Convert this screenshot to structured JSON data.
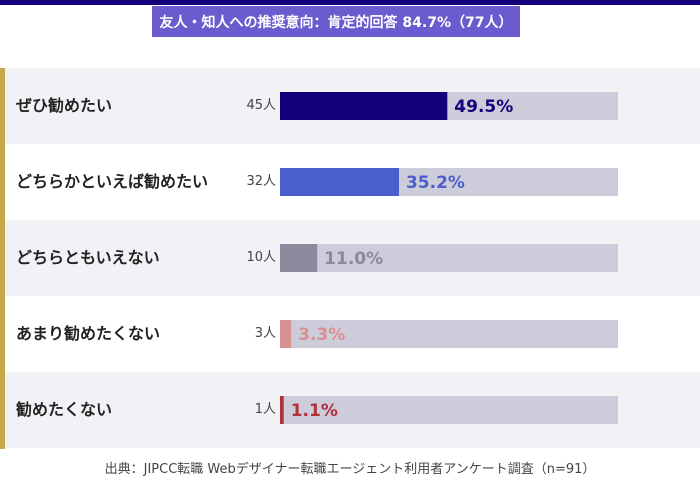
{
  "chart_data": {
    "type": "bar",
    "orientation": "horizontal",
    "title": "友人・知人への推奨意向：肯定的回答 84.7%（77人）",
    "categories": [
      "ぜひ勧めたい",
      "どちらかといえば勧めたい",
      "どちらともいえない",
      "あまり勧めたくない",
      "勧めたくない"
    ],
    "counts": [
      "45人",
      "32人",
      "10人",
      "3人",
      "1人"
    ],
    "values": [
      49.5,
      35.2,
      11.0,
      3.3,
      1.1
    ],
    "value_labels": [
      "49.5%",
      "35.2%",
      "11.0%",
      "3.3%",
      "1.1%"
    ],
    "xlim": [
      0,
      100
    ],
    "colors": [
      "#14007a",
      "#4b5fcc",
      "#8a8a9c",
      "#d99090",
      "#b0303c"
    ],
    "track_color": "#cdccda",
    "grid": false,
    "legend": "none"
  },
  "source": "出典：JIPCC転職 Webデザイナー転職エージェント利用者アンケート調査（n=91）"
}
